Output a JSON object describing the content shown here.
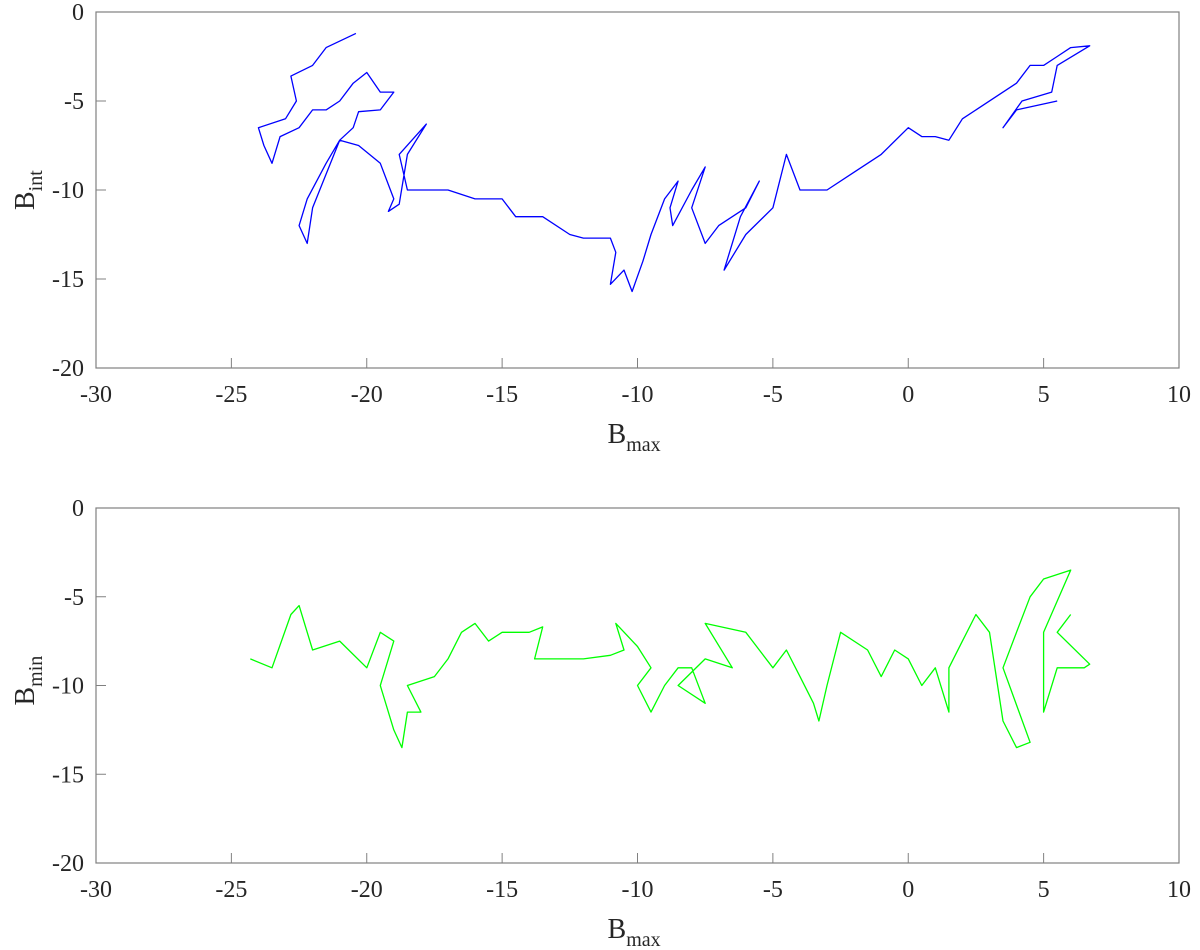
{
  "chart_data": [
    {
      "type": "line",
      "xlabel": "B",
      "xlabel_sub": "max",
      "ylabel": "B",
      "ylabel_sub": "int",
      "xlim": [
        -30,
        10
      ],
      "ylim": [
        -20,
        0
      ],
      "xticks": [
        -30,
        -25,
        -20,
        -15,
        -10,
        -5,
        0,
        5,
        10
      ],
      "yticks": [
        0,
        -5,
        -10,
        -15,
        -20
      ],
      "grid": false,
      "color": "#0000ff",
      "x": [
        -20.4,
        -21.5,
        -22,
        -22.8,
        -22.6,
        -23,
        -24,
        -23.8,
        -23.5,
        -23.2,
        -22.5,
        -22,
        -21.5,
        -21,
        -20.5,
        -20,
        -19.5,
        -19,
        -19.5,
        -20.3,
        -20.5,
        -21,
        -21.5,
        -22.2,
        -22.5,
        -22.2,
        -22,
        -21,
        -20.3,
        -19.5,
        -19,
        -19.2,
        -18.8,
        -18.5,
        -17.8,
        -18.8,
        -18.5,
        -17,
        -16,
        -15,
        -14.5,
        -13.5,
        -12.5,
        -12,
        -11,
        -10.8,
        -11,
        -10.5,
        -10.2,
        -9.8,
        -9.5,
        -9,
        -8.5,
        -8.8,
        -8.7,
        -8,
        -7.5,
        -8,
        -7.5,
        -7,
        -6,
        -5.5,
        -6.2,
        -6.8,
        -6,
        -5,
        -4.5,
        -4,
        -3,
        -2,
        -1,
        0,
        0.5,
        1,
        1.5,
        2,
        3,
        3.5,
        2.5,
        4,
        4.5,
        5,
        5.5,
        6,
        6.7,
        5.5,
        5.3,
        4.2,
        3.5,
        4,
        5.5
      ],
      "y": [
        -1.2,
        -2,
        -3,
        -3.6,
        -5,
        -6,
        -6.5,
        -7.5,
        -8.5,
        -7,
        -6.5,
        -5.5,
        -5.5,
        -5,
        -4,
        -3.4,
        -4.5,
        -4.5,
        -5.5,
        -5.6,
        -6.5,
        -7.2,
        -8.5,
        -10.5,
        -12,
        -13,
        -11,
        -7.2,
        -7.5,
        -8.5,
        -10.5,
        -11.2,
        -10.8,
        -8,
        -6.3,
        -8,
        -10,
        -10,
        -10.5,
        -10.5,
        -11.5,
        -11.5,
        -12.5,
        -12.7,
        -12.7,
        -13.5,
        -15.3,
        -14.5,
        -15.7,
        -14,
        -12.5,
        -10.5,
        -9.5,
        -11,
        -12,
        -10,
        -8.7,
        -11,
        -13,
        -12,
        -11,
        -9.5,
        -11.5,
        -14.5,
        -12.5,
        -11,
        -8,
        -10,
        -10,
        -9,
        -8,
        -6.5,
        -7,
        -7,
        -7.2,
        -6,
        -5,
        -4.5,
        -5.5,
        -4,
        -3,
        -3,
        -2.5,
        -2,
        -1.9,
        -3,
        -4.5,
        -5,
        -6.5,
        -5.5,
        -5
      ]
    },
    {
      "type": "line",
      "xlabel": "B",
      "xlabel_sub": "max",
      "ylabel": "B",
      "ylabel_sub": "min",
      "xlim": [
        -30,
        10
      ],
      "ylim": [
        -20,
        0
      ],
      "xticks": [
        -30,
        -25,
        -20,
        -15,
        -10,
        -5,
        0,
        5,
        10
      ],
      "yticks": [
        0,
        -5,
        -10,
        -15,
        -20
      ],
      "grid": false,
      "color": "#00ff00",
      "x": [
        -24.3,
        -23.5,
        -22.8,
        -22.5,
        -22,
        -21,
        -20,
        -19.5,
        -19,
        -19.5,
        -19,
        -18.7,
        -18.5,
        -18,
        -18.5,
        -17.5,
        -17,
        -16.5,
        -16,
        -15.5,
        -15,
        -14,
        -13.5,
        -13.8,
        -13,
        -12,
        -11,
        -10.5,
        -10.8,
        -10,
        -9.5,
        -10,
        -9.5,
        -9,
        -8.5,
        -8,
        -7.5,
        -8.5,
        -7.5,
        -6.5,
        -7.5,
        -6,
        -5.5,
        -5,
        -4.5,
        -4,
        -3.5,
        -3.3,
        -3,
        -2.5,
        -1.5,
        -1,
        -0.5,
        0,
        0.5,
        1,
        1.5,
        1.5,
        2,
        2.5,
        3,
        3.5,
        4,
        4.5,
        3.5,
        4,
        4.5,
        5,
        6,
        5,
        5,
        5.5,
        6.5,
        6.7,
        5.5,
        6
      ],
      "y": [
        -8.5,
        -9,
        -6,
        -5.5,
        -8,
        -7.5,
        -9,
        -7,
        -7.5,
        -10,
        -12.5,
        -13.5,
        -11.5,
        -11.5,
        -10,
        -9.5,
        -8.5,
        -7,
        -6.5,
        -7.5,
        -7,
        -7,
        -6.7,
        -8.5,
        -8.5,
        -8.5,
        -8.3,
        -8,
        -6.5,
        -7.8,
        -9,
        -10,
        -11.5,
        -10,
        -9,
        -9,
        -11,
        -10,
        -8.5,
        -9,
        -6.5,
        -7,
        -8,
        -9,
        -8,
        -9.5,
        -11,
        -12,
        -10,
        -7,
        -8,
        -9.5,
        -8,
        -8.5,
        -10,
        -9,
        -11.5,
        -9,
        -7.5,
        -6,
        -7,
        -12,
        -13.5,
        -13.2,
        -9,
        -7,
        -5,
        -4,
        -3.5,
        -7,
        -11.5,
        -9,
        -9,
        -8.8,
        -7,
        -6
      ]
    }
  ]
}
